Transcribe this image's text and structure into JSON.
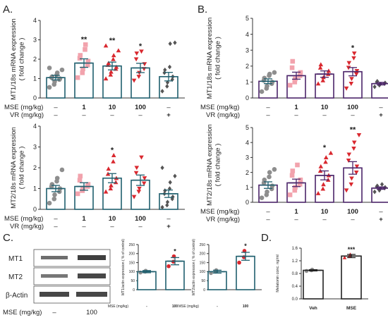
{
  "panel_labels": {
    "a": "A.",
    "b": "B.",
    "c": "C.",
    "d": "D."
  },
  "row_labels": {
    "mse": "MSE  (mg/kg)",
    "vr": "VR  (mg/kg)",
    "mse_c": "MSE (mg/kg)"
  },
  "dose_labels": [
    "–",
    "1",
    "10",
    "100",
    "–"
  ],
  "vr_labels": [
    "–",
    "–",
    "–",
    "–",
    "+"
  ],
  "blot": {
    "bands": [
      "MT1",
      "MT2",
      "β-Actin"
    ],
    "lanes": [
      "–",
      "100"
    ]
  },
  "colors": {
    "teal": "#1f5f6e",
    "purple": "#4b2469",
    "red": "#d9282f",
    "pink": "#f2a3ad",
    "gray": "#8e8e8e",
    "dark": "#555555",
    "bar_fill": "#ffffff"
  },
  "chart_data": [
    {
      "id": "A1",
      "type": "bar",
      "panel": "A",
      "ylabel": "MT1/18s mRNA expression ( fold change )",
      "ylim": [
        0,
        4
      ],
      "yticks": [
        0,
        1,
        2,
        3,
        4
      ],
      "categories": [
        "–",
        "1",
        "10",
        "100",
        "–"
      ],
      "values": [
        1.05,
        1.8,
        1.65,
        1.55,
        1.1
      ],
      "errors": [
        0.12,
        0.22,
        0.2,
        0.24,
        0.22
      ],
      "significance": [
        "",
        "**",
        "**",
        "*",
        ""
      ],
      "points": [
        [
          0.55,
          0.7,
          0.85,
          0.95,
          1.0,
          1.05,
          1.1,
          1.2,
          1.3,
          1.45,
          1.55
        ],
        [
          1.05,
          1.3,
          1.5,
          1.7,
          1.9,
          2.05,
          2.2,
          2.5,
          2.75
        ],
        [
          1.0,
          1.2,
          1.35,
          1.5,
          1.6,
          1.7,
          1.8,
          2.0,
          2.2,
          2.45,
          2.7
        ],
        [
          0.9,
          1.1,
          1.3,
          1.5,
          1.75,
          2.0,
          2.3,
          2.4
        ],
        [
          0.35,
          0.6,
          0.8,
          0.95,
          1.1,
          1.3,
          1.45,
          1.6,
          2.8,
          2.85
        ]
      ]
    },
    {
      "id": "A2",
      "type": "bar",
      "panel": "A",
      "ylabel": "MT2/18s mRNA expression ( fold change )",
      "ylim": [
        0,
        4
      ],
      "yticks": [
        0,
        1,
        2,
        3,
        4
      ],
      "categories": [
        "–",
        "1",
        "10",
        "100",
        "–"
      ],
      "values": [
        1.0,
        1.1,
        1.5,
        1.4,
        0.75
      ],
      "errors": [
        0.15,
        0.18,
        0.22,
        0.25,
        0.18
      ],
      "significance": [
        "",
        "",
        "*",
        "",
        ""
      ],
      "points": [
        [
          0.3,
          0.5,
          0.7,
          0.85,
          1.0,
          1.1,
          1.2,
          1.35,
          1.5,
          1.9
        ],
        [
          0.75,
          0.9,
          1.0,
          1.1,
          1.2,
          1.4,
          1.6
        ],
        [
          0.85,
          1.0,
          1.15,
          1.3,
          1.5,
          1.7,
          1.95,
          2.3,
          2.6
        ],
        [
          0.6,
          0.85,
          1.0,
          1.25,
          1.5,
          1.75,
          2.0,
          2.5
        ],
        [
          0.1,
          0.2,
          0.35,
          0.5,
          0.6,
          0.75,
          0.9,
          1.0,
          1.3,
          1.6,
          2.0
        ]
      ]
    },
    {
      "id": "B1",
      "type": "bar",
      "panel": "B",
      "ylabel": "MT1/18s mRNA expression ( fold change )",
      "ylim": [
        0,
        5
      ],
      "yticks": [
        0,
        1,
        2,
        3,
        4,
        5
      ],
      "categories": [
        "–",
        "1",
        "10",
        "100",
        "–"
      ],
      "values": [
        1.05,
        1.4,
        1.5,
        1.65,
        0.9
      ],
      "errors": [
        0.15,
        0.22,
        0.2,
        0.26,
        0.08
      ],
      "significance": [
        "",
        "",
        "",
        "*",
        ""
      ],
      "points": [
        [
          0.4,
          0.6,
          0.75,
          0.9,
          1.0,
          1.1,
          1.25,
          1.4,
          1.5,
          1.6
        ],
        [
          0.8,
          1.0,
          1.2,
          1.4,
          1.6,
          1.9,
          2.3
        ],
        [
          0.9,
          1.1,
          1.3,
          1.5,
          1.7,
          1.9,
          2.1
        ],
        [
          0.6,
          0.9,
          1.2,
          1.5,
          1.7,
          1.9,
          2.2,
          2.5,
          2.8
        ],
        [
          0.7,
          0.8,
          0.85,
          0.9,
          0.95,
          1.0,
          1.05
        ]
      ]
    },
    {
      "id": "B2",
      "type": "bar",
      "panel": "B",
      "ylabel": "MT2/18s mRNA expression ( fold change )",
      "ylim": [
        0,
        5
      ],
      "yticks": [
        0,
        1,
        2,
        3,
        4,
        5
      ],
      "categories": [
        "–",
        "1",
        "10",
        "100",
        "–"
      ],
      "values": [
        1.15,
        1.3,
        1.8,
        2.3,
        0.95
      ],
      "errors": [
        0.22,
        0.25,
        0.3,
        0.42,
        0.08
      ],
      "significance": [
        "",
        "",
        "*",
        "**",
        ""
      ],
      "points": [
        [
          0.3,
          0.5,
          0.7,
          0.9,
          1.1,
          1.3,
          1.5,
          1.7,
          2.0,
          2.2
        ],
        [
          0.5,
          0.8,
          1.0,
          1.2,
          1.5,
          1.8,
          2.1,
          2.5
        ],
        [
          0.6,
          0.9,
          1.2,
          1.5,
          1.8,
          2.1,
          2.4,
          2.7,
          3.0,
          3.3
        ],
        [
          0.8,
          1.2,
          1.6,
          2.0,
          2.4,
          2.8,
          3.2,
          3.6,
          4.0,
          4.5
        ],
        [
          0.7,
          0.8,
          0.9,
          0.95,
          1.0,
          1.05,
          1.1,
          1.2
        ]
      ]
    },
    {
      "id": "C1",
      "type": "bar",
      "panel": "C",
      "ylabel": "MT1/actin expression ( % of control)",
      "ylim": [
        0,
        250
      ],
      "yticks": [
        0,
        50,
        100,
        150,
        200,
        250
      ],
      "categories": [
        "-",
        "100"
      ],
      "values": [
        100,
        158
      ],
      "errors": [
        6,
        20
      ],
      "significance": [
        "",
        "*"
      ],
      "points": [
        [
          95,
          100,
          105
        ],
        [
          130,
          155,
          185
        ]
      ]
    },
    {
      "id": "C2",
      "type": "bar",
      "panel": "C",
      "ylabel": "MT2/actin expression ( % of control)",
      "ylim": [
        0,
        250
      ],
      "yticks": [
        0,
        50,
        100,
        150,
        200,
        250
      ],
      "categories": [
        "-",
        "100"
      ],
      "values": [
        100,
        185
      ],
      "errors": [
        8,
        22
      ],
      "significance": [
        "",
        "*"
      ],
      "points": [
        [
          92,
          100,
          108
        ],
        [
          150,
          180,
          215
        ]
      ]
    },
    {
      "id": "D1",
      "type": "bar",
      "panel": "D",
      "ylabel": "Melatonin conc. ng/ml",
      "ylim": [
        0,
        1.6
      ],
      "yticks": [
        0.0,
        0.4,
        0.8,
        1.2,
        1.6
      ],
      "categories": [
        "Veh",
        "MSE"
      ],
      "values": [
        0.9,
        1.35
      ],
      "errors": [
        0.02,
        0.05
      ],
      "significance": [
        "",
        "***"
      ],
      "points": [
        [
          0.88,
          0.9,
          0.92
        ],
        [
          1.3,
          1.35,
          1.4
        ]
      ]
    }
  ]
}
